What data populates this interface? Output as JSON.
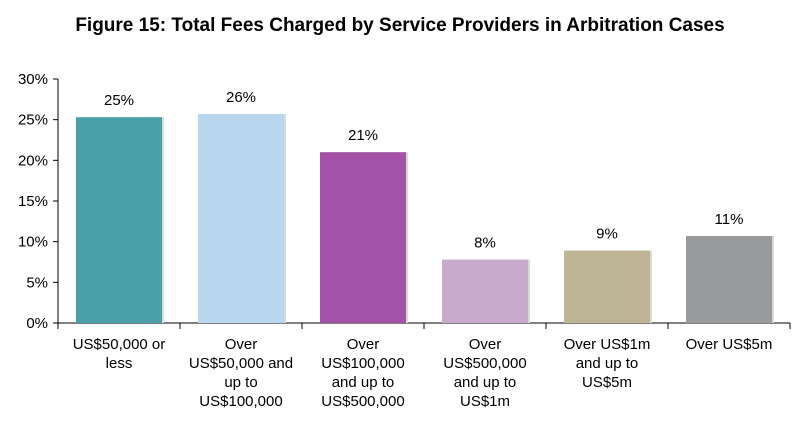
{
  "chart_data": {
    "type": "bar",
    "title": "Figure 15: Total Fees Charged by Service Providers in Arbitration Cases",
    "categories": [
      "US$50,000 or\nless",
      "Over\nUS$50,000 and\nup to\nUS$100,000",
      "Over\nUS$100,000\nand up to\nUS$500,000",
      "Over\nUS$500,000\nand up to\nUS$1m",
      "Over US$1m\nand up to\nUS$5m",
      "Over US$5m"
    ],
    "values": [
      25.3,
      25.7,
      21.0,
      7.8,
      8.9,
      10.7
    ],
    "data_labels": [
      "25%",
      "26%",
      "21%",
      "8%",
      "9%",
      "11%"
    ],
    "colors": [
      "#4a9fa8",
      "#b8d7ee",
      "#a352a8",
      "#c7aacd",
      "#bdb596",
      "#999a9c"
    ],
    "ylim": [
      0,
      30
    ],
    "yticks": [
      0,
      5,
      10,
      15,
      20,
      25,
      30
    ],
    "ytick_labels": [
      "0%",
      "5%",
      "10%",
      "15%",
      "20%",
      "25%",
      "30%"
    ],
    "xlabel": "",
    "ylabel": "",
    "grid": false,
    "legend": "none"
  }
}
